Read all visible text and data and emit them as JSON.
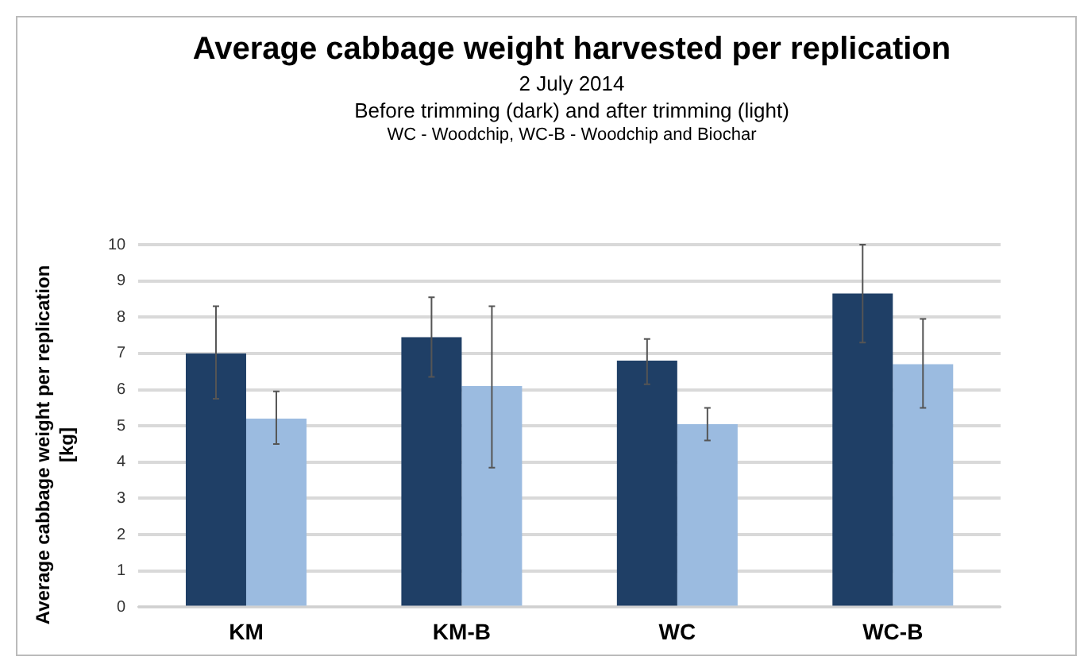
{
  "chart_data": {
    "type": "bar",
    "title": "Average cabbage weight harvested per replication",
    "subtitle": "2 July 2014",
    "annotations": [
      "Before trimming (dark) and after trimming (light)",
      "WC - Woodchip, WC-B - Woodchip and Biochar"
    ],
    "ylabel": "Average cabbage weight per replication [kg]",
    "categories": [
      "KM",
      "KM-B",
      "WC",
      "WC-B"
    ],
    "series": [
      {
        "color": "#1f3f66",
        "values": [
          7.0,
          7.45,
          6.8,
          8.65
        ],
        "errors": [
          [
            5.75,
            8.3
          ],
          [
            6.35,
            8.55
          ],
          [
            6.15,
            7.4
          ],
          [
            7.3,
            10.0
          ]
        ]
      },
      {
        "color": "#9bbbe0",
        "values": [
          5.2,
          6.1,
          5.05,
          6.7
        ],
        "errors": [
          [
            4.5,
            5.95
          ],
          [
            3.85,
            8.3
          ],
          [
            4.6,
            5.5
          ],
          [
            5.5,
            7.95
          ]
        ]
      }
    ],
    "ylim": [
      0,
      10
    ],
    "yticks": [
      0,
      1,
      2,
      3,
      4,
      5,
      6,
      7,
      8,
      9,
      10
    ],
    "grid": "y",
    "legend": false
  }
}
